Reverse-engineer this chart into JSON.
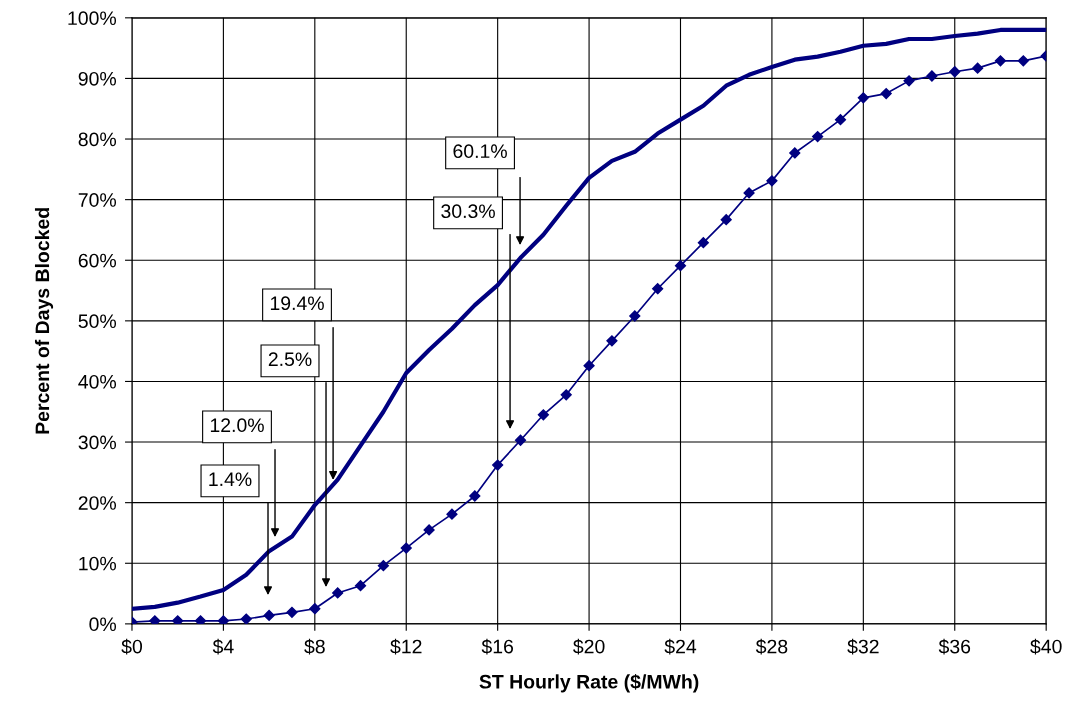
{
  "chart_data": {
    "type": "line",
    "xlabel": "ST Hourly Rate ($/MWh)",
    "ylabel": "Percent of Days Blocked",
    "x": [
      0,
      1,
      2,
      3,
      4,
      5,
      6,
      7,
      8,
      9,
      10,
      11,
      12,
      13,
      14,
      15,
      16,
      17,
      18,
      19,
      20,
      21,
      22,
      23,
      24,
      25,
      26,
      27,
      28,
      29,
      30,
      31,
      32,
      33,
      34,
      35,
      36,
      37,
      38,
      39,
      40
    ],
    "series": [
      {
        "color": "#000080",
        "marker": "none",
        "values": [
          2.5,
          2.8,
          3.5,
          4.5,
          5.6,
          8.1,
          12.0,
          14.4,
          19.6,
          23.8,
          29.4,
          35.0,
          41.4,
          45.2,
          48.7,
          52.6,
          55.9,
          60.4,
          64.2,
          69.0,
          73.6,
          76.4,
          77.9,
          80.9,
          83.2,
          85.5,
          88.8,
          90.6,
          91.9,
          93.1,
          93.6,
          94.4,
          95.4,
          95.7,
          96.5,
          96.5,
          97.0,
          97.4,
          98.0,
          98.0,
          98.0
        ]
      },
      {
        "color": "#000080",
        "marker": "diamond",
        "values": [
          0.3,
          0.5,
          0.5,
          0.5,
          0.5,
          0.8,
          1.4,
          1.9,
          2.5,
          5.1,
          6.3,
          9.6,
          12.5,
          15.5,
          18.1,
          21.1,
          26.2,
          30.3,
          34.5,
          37.8,
          42.6,
          46.7,
          50.8,
          55.3,
          59.1,
          62.9,
          66.7,
          71.1,
          73.1,
          77.7,
          80.4,
          83.2,
          86.8,
          87.5,
          89.6,
          90.4,
          91.1,
          91.7,
          92.9,
          92.9,
          93.7
        ]
      }
    ],
    "xlim": [
      0,
      40
    ],
    "xticks": [
      {
        "value": 0,
        "label": "$0"
      },
      {
        "value": 4,
        "label": "$4"
      },
      {
        "value": 8,
        "label": "$8"
      },
      {
        "value": 12,
        "label": "$12"
      },
      {
        "value": 16,
        "label": "$16"
      },
      {
        "value": 20,
        "label": "$20"
      },
      {
        "value": 24,
        "label": "$24"
      },
      {
        "value": 28,
        "label": "$28"
      },
      {
        "value": 32,
        "label": "$32"
      },
      {
        "value": 36,
        "label": "$36"
      },
      {
        "value": 40,
        "label": "$40"
      }
    ],
    "ylim": [
      0,
      100
    ],
    "yticks": [
      {
        "value": 0,
        "label": "0%"
      },
      {
        "value": 10,
        "label": "10%"
      },
      {
        "value": 20,
        "label": "20%"
      },
      {
        "value": 30,
        "label": "30%"
      },
      {
        "value": 40,
        "label": "40%"
      },
      {
        "value": 50,
        "label": "50%"
      },
      {
        "value": 60,
        "label": "60%"
      },
      {
        "value": 70,
        "label": "70%"
      },
      {
        "value": 80,
        "label": "80%"
      },
      {
        "value": 90,
        "label": "90%"
      },
      {
        "value": 100,
        "label": "100%"
      }
    ],
    "grid": true,
    "legend": false,
    "annotations": [
      "12.0%",
      "1.4%",
      {
        "text": "19.4%",
        "x": 8.8,
        "y": 23.3
      },
      "2.5%",
      "60.1%",
      "30.3%"
    ]
  }
}
